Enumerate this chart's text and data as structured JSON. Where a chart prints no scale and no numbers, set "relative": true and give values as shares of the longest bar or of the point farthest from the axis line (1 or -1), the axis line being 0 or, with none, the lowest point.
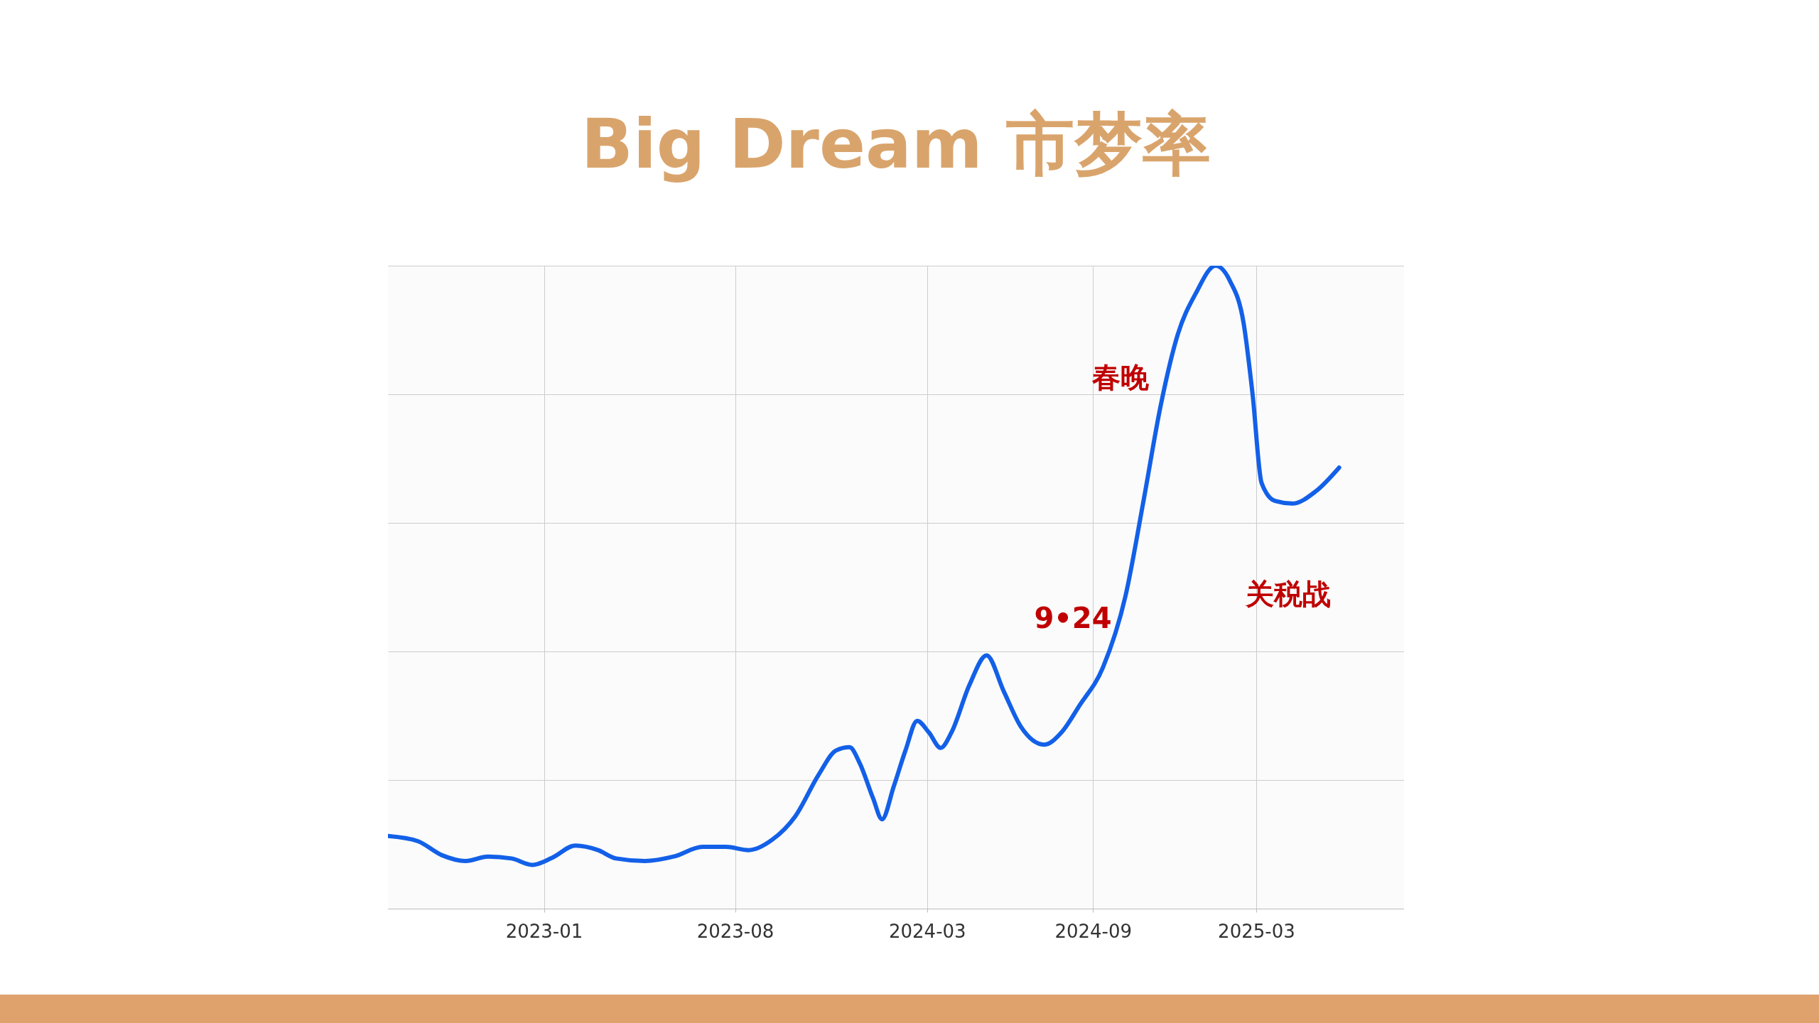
{
  "chart_data": {
    "type": "line",
    "title": "Big Dream 市梦率",
    "relative": true,
    "grid": true,
    "marker": "none",
    "line_style": "solid",
    "x": [
      "2022-07-12",
      "2022-08-14",
      "2022-09-10",
      "2022-10-06",
      "2022-10-31",
      "2022-11-26",
      "2022-12-19",
      "2023-01-10",
      "2023-02-05",
      "2023-03-02",
      "2023-03-22",
      "2023-04-23",
      "2023-05-25",
      "2023-06-26",
      "2023-07-22",
      "2023-08-16",
      "2023-09-11",
      "2023-10-07",
      "2023-11-02",
      "2023-11-21",
      "2023-12-06",
      "2023-12-17",
      "2024-01-01",
      "2024-01-11",
      "2024-01-24",
      "2024-02-06",
      "2024-02-19",
      "2024-03-03",
      "2024-03-16",
      "2024-03-28",
      "2024-04-17",
      "2024-05-06",
      "2024-05-25",
      "2024-06-13",
      "2024-07-09",
      "2024-07-28",
      "2024-08-17",
      "2024-09-12",
      "2024-10-07",
      "2024-10-27",
      "2024-11-15",
      "2024-12-04",
      "2024-12-24",
      "2025-01-15",
      "2025-01-31",
      "2025-02-15",
      "2025-02-25",
      "2025-03-07",
      "2025-03-22",
      "2025-04-10",
      "2025-05-06",
      "2025-06-01"
    ],
    "series": [
      {
        "color": "#1360e8",
        "values": [
          0.113,
          0.105,
          0.083,
          0.074,
          0.081,
          0.078,
          0.068,
          0.079,
          0.098,
          0.091,
          0.078,
          0.074,
          0.081,
          0.096,
          0.096,
          0.091,
          0.107,
          0.144,
          0.209,
          0.246,
          0.251,
          0.227,
          0.172,
          0.139,
          0.19,
          0.246,
          0.292,
          0.274,
          0.25,
          0.274,
          0.348,
          0.394,
          0.338,
          0.283,
          0.255,
          0.274,
          0.316,
          0.375,
          0.486,
          0.634,
          0.782,
          0.893,
          0.957,
          1,
          0.976,
          0.911,
          0.8,
          0.662,
          0.634,
          0.63,
          0.649,
          0.686
        ]
      }
    ],
    "xlim": [
      "2022-07-12",
      "2025-08-12"
    ],
    "xticks": [
      "2023-01",
      "2023-08",
      "2024-03",
      "2024-09",
      "2025-03"
    ],
    "annotations": [
      "春晚",
      "9•24",
      "关税战"
    ]
  }
}
